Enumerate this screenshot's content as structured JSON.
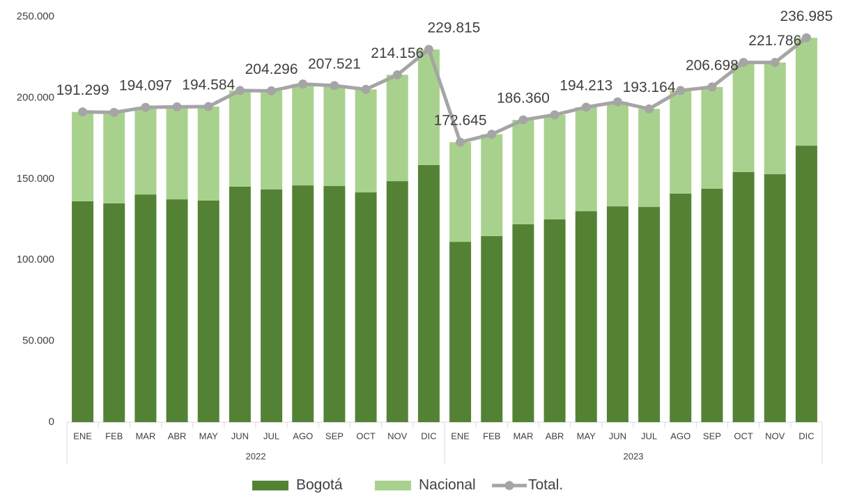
{
  "chart_data": {
    "type": "bar",
    "stacked": true,
    "categories": [
      "ENE",
      "FEB",
      "MAR",
      "ABR",
      "MAY",
      "JUN",
      "JUL",
      "AGO",
      "SEP",
      "OCT",
      "NOV",
      "DIC",
      "ENE",
      "FEB",
      "MAR",
      "ABR",
      "MAY",
      "JUN",
      "JUL",
      "AGO",
      "SEP",
      "OCT",
      "NOV",
      "DIC"
    ],
    "groups": [
      "2022",
      "2023"
    ],
    "series": [
      {
        "name": "Bogotá",
        "type": "bar",
        "color": "#548235",
        "values": [
          136200,
          134900,
          140400,
          137400,
          136600,
          145200,
          143500,
          146000,
          145600,
          141700,
          148600,
          158500,
          111200,
          114700,
          122000,
          125000,
          130100,
          133100,
          132700,
          140900,
          143900,
          154200,
          152900,
          170500
        ]
      },
      {
        "name": "Nacional",
        "type": "bar",
        "color": "#a9d18e",
        "values": [
          55100,
          56100,
          53700,
          57000,
          58000,
          59300,
          60800,
          62500,
          61900,
          63500,
          65600,
          71300,
          61400,
          62800,
          64400,
          64500,
          64100,
          64400,
          60500,
          63600,
          62800,
          67600,
          68900,
          66500
        ]
      },
      {
        "name": "Total.",
        "type": "line",
        "color": "#a5a5a5",
        "values": [
          191299,
          191000,
          194097,
          194400,
          194584,
          204500,
          204296,
          208500,
          207521,
          205200,
          214156,
          229815,
          172645,
          177500,
          186360,
          189500,
          194213,
          197500,
          193164,
          204500,
          206698,
          221800,
          221786,
          236985
        ],
        "value_labels": [
          "191.299",
          null,
          "194.097",
          null,
          "194.584",
          null,
          "204.296",
          null,
          "207.521",
          null,
          "214.156",
          "229.815",
          "172.645",
          null,
          "186.360",
          null,
          "194.213",
          null,
          "193.164",
          null,
          "206.698",
          null,
          "221.786",
          "236.985"
        ]
      }
    ],
    "ylim": [
      0,
      250000
    ],
    "yticks": [
      0,
      {
        "value": 50000,
        "label": "50.000"
      },
      {
        "value": 100000,
        "label": "100.000"
      },
      {
        "value": 150000,
        "label": "150.000"
      },
      {
        "value": 200000,
        "label": "200.000"
      },
      {
        "value": 250000,
        "label": "250.000"
      }
    ],
    "grid": false,
    "legend": "bottom"
  }
}
